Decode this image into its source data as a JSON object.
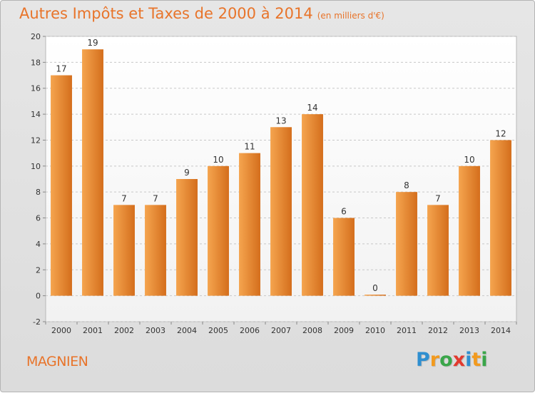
{
  "header": {
    "title": "Autres Impôts et Taxes de 2000 à 2014",
    "subtitle": "(en milliers d'€)"
  },
  "footer": {
    "commune": "MAGNIEN",
    "logo_letters": [
      {
        "char": "P",
        "color": "#2f8fd0"
      },
      {
        "char": "r",
        "color": "#f29a1e"
      },
      {
        "char": "o",
        "color": "#3aa64a"
      },
      {
        "char": "x",
        "color": "#e23a2e"
      },
      {
        "char": "i",
        "color": "#2f8fd0"
      },
      {
        "char": "t",
        "color": "#f29a1e"
      },
      {
        "char": "i",
        "color": "#3aa64a"
      }
    ]
  },
  "colors": {
    "bar_light": "#f5a54f",
    "bar_dark": "#d46e1c",
    "accent": "#e8742a",
    "grid": "#c8c8c8",
    "plot_bg": "#ffffff"
  },
  "chart_data": {
    "type": "bar",
    "title": "Autres Impôts et Taxes de 2000 à 2014",
    "categories": [
      "2000",
      "2001",
      "2002",
      "2003",
      "2004",
      "2005",
      "2006",
      "2007",
      "2008",
      "2009",
      "2010",
      "2011",
      "2012",
      "2013",
      "2014"
    ],
    "values": [
      17,
      19,
      7,
      7,
      9,
      10,
      11,
      13,
      14,
      6,
      0,
      8,
      7,
      10,
      12
    ],
    "ylim": [
      -2,
      20
    ],
    "yticks": [
      -2,
      0,
      2,
      4,
      6,
      8,
      10,
      12,
      14,
      16,
      18,
      20
    ],
    "grid": true
  }
}
